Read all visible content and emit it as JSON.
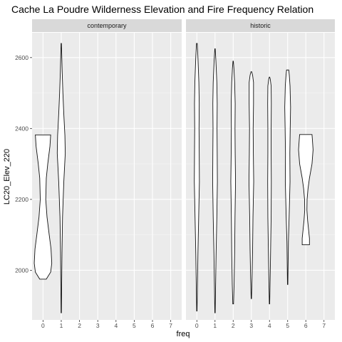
{
  "chart_data": {
    "type": "violin",
    "title": "Cache La Poudre Wilderness Elevation and Fire Frequency Relation",
    "xlabel": "freq",
    "ylabel": "LC20_Elev_220",
    "x_ticks": [
      0,
      1,
      2,
      3,
      4,
      5,
      6,
      7
    ],
    "y_ticks": [
      2000,
      2200,
      2400,
      2600
    ],
    "xlim": [
      -0.6,
      7.6
    ],
    "ylim": [
      1860,
      2670
    ],
    "grid": true,
    "facets": [
      {
        "label": "contemporary",
        "violins": [
          {
            "x": 0,
            "min": 1975,
            "max": 2382,
            "profile": [
              [
                1975,
                0.18
              ],
              [
                1995,
                0.42
              ],
              [
                2020,
                0.48
              ],
              [
                2060,
                0.44
              ],
              [
                2100,
                0.34
              ],
              [
                2150,
                0.22
              ],
              [
                2200,
                0.15
              ],
              [
                2260,
                0.18
              ],
              [
                2300,
                0.26
              ],
              [
                2350,
                0.38
              ],
              [
                2382,
                0.42
              ]
            ]
          },
          {
            "x": 1,
            "min": 1880,
            "max": 2640,
            "profile": [
              [
                1880,
                0.01
              ],
              [
                1950,
                0.02
              ],
              [
                2050,
                0.04
              ],
              [
                2150,
                0.07
              ],
              [
                2250,
                0.14
              ],
              [
                2330,
                0.22
              ],
              [
                2380,
                0.2
              ],
              [
                2440,
                0.14
              ],
              [
                2500,
                0.09
              ],
              [
                2560,
                0.05
              ],
              [
                2620,
                0.02
              ],
              [
                2640,
                0.01
              ]
            ]
          }
        ]
      },
      {
        "label": "historic",
        "violins": [
          {
            "x": 0,
            "min": 1885,
            "max": 2640,
            "profile": [
              [
                1885,
                0.01
              ],
              [
                1950,
                0.03
              ],
              [
                2050,
                0.06
              ],
              [
                2150,
                0.1
              ],
              [
                2250,
                0.14
              ],
              [
                2330,
                0.13
              ],
              [
                2400,
                0.12
              ],
              [
                2470,
                0.13
              ],
              [
                2530,
                0.11
              ],
              [
                2600,
                0.06
              ],
              [
                2640,
                0.02
              ]
            ]
          },
          {
            "x": 1,
            "min": 1880,
            "max": 2625,
            "profile": [
              [
                1880,
                0.01
              ],
              [
                1950,
                0.03
              ],
              [
                2050,
                0.06
              ],
              [
                2150,
                0.1
              ],
              [
                2250,
                0.13
              ],
              [
                2330,
                0.12
              ],
              [
                2400,
                0.11
              ],
              [
                2470,
                0.12
              ],
              [
                2530,
                0.1
              ],
              [
                2590,
                0.05
              ],
              [
                2625,
                0.01
              ]
            ]
          },
          {
            "x": 2,
            "min": 1905,
            "max": 2590,
            "profile": [
              [
                1905,
                0.02
              ],
              [
                1960,
                0.05
              ],
              [
                2050,
                0.08
              ],
              [
                2150,
                0.1
              ],
              [
                2250,
                0.13
              ],
              [
                2330,
                0.11
              ],
              [
                2400,
                0.1
              ],
              [
                2470,
                0.11
              ],
              [
                2530,
                0.08
              ],
              [
                2570,
                0.04
              ],
              [
                2590,
                0.01
              ]
            ]
          },
          {
            "x": 3,
            "min": 1920,
            "max": 2560,
            "profile": [
              [
                1920,
                0.01
              ],
              [
                1980,
                0.04
              ],
              [
                2060,
                0.07
              ],
              [
                2150,
                0.09
              ],
              [
                2250,
                0.13
              ],
              [
                2330,
                0.11
              ],
              [
                2400,
                0.1
              ],
              [
                2470,
                0.12
              ],
              [
                2530,
                0.12
              ],
              [
                2550,
                0.07
              ],
              [
                2560,
                0.02
              ]
            ]
          },
          {
            "x": 4,
            "min": 1905,
            "max": 2545,
            "profile": [
              [
                1905,
                0.01
              ],
              [
                1960,
                0.03
              ],
              [
                2050,
                0.06
              ],
              [
                2150,
                0.09
              ],
              [
                2250,
                0.1
              ],
              [
                2330,
                0.09
              ],
              [
                2400,
                0.09
              ],
              [
                2470,
                0.1
              ],
              [
                2520,
                0.09
              ],
              [
                2540,
                0.04
              ],
              [
                2545,
                0.01
              ]
            ]
          },
          {
            "x": 5,
            "min": 1960,
            "max": 2565,
            "profile": [
              [
                1960,
                0.01
              ],
              [
                2000,
                0.02
              ],
              [
                2080,
                0.04
              ],
              [
                2150,
                0.08
              ],
              [
                2250,
                0.13
              ],
              [
                2330,
                0.12
              ],
              [
                2400,
                0.14
              ],
              [
                2460,
                0.16
              ],
              [
                2520,
                0.13
              ],
              [
                2550,
                0.09
              ],
              [
                2565,
                0.06
              ]
            ]
          },
          {
            "x": 6,
            "min": 2072,
            "max": 2383,
            "profile": [
              [
                2072,
                0.2
              ],
              [
                2090,
                0.2
              ],
              [
                2110,
                0.16
              ],
              [
                2140,
                0.1
              ],
              [
                2170,
                0.06
              ],
              [
                2200,
                0.07
              ],
              [
                2230,
                0.12
              ],
              [
                2260,
                0.2
              ],
              [
                2300,
                0.34
              ],
              [
                2340,
                0.4
              ],
              [
                2370,
                0.36
              ],
              [
                2383,
                0.34
              ]
            ]
          }
        ]
      }
    ]
  }
}
